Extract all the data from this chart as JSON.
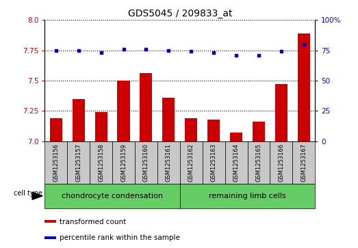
{
  "title": "GDS5045 / 209833_at",
  "samples": [
    "GSM1253156",
    "GSM1253157",
    "GSM1253158",
    "GSM1253159",
    "GSM1253160",
    "GSM1253161",
    "GSM1253162",
    "GSM1253163",
    "GSM1253164",
    "GSM1253165",
    "GSM1253166",
    "GSM1253167"
  ],
  "bar_values": [
    7.19,
    7.35,
    7.24,
    7.5,
    7.56,
    7.36,
    7.19,
    7.18,
    7.07,
    7.16,
    7.47,
    7.89
  ],
  "dot_values": [
    75,
    75,
    73,
    76,
    76,
    75,
    74,
    73,
    71,
    71,
    74,
    80
  ],
  "ylim_left": [
    7.0,
    8.0
  ],
  "ylim_right": [
    0,
    100
  ],
  "yticks_left": [
    7.0,
    7.25,
    7.5,
    7.75,
    8.0
  ],
  "yticks_right": [
    0,
    25,
    50,
    75,
    100
  ],
  "bar_color": "#cc0000",
  "dot_color": "#0000cc",
  "bar_width": 0.55,
  "group_bg_color": "#c8c8c8",
  "groups": [
    {
      "label": "chondrocyte condensation",
      "start": 0,
      "end": 5,
      "color": "#66cc66"
    },
    {
      "label": "remaining limb cells",
      "start": 6,
      "end": 11,
      "color": "#66cc66"
    }
  ],
  "cell_type_label": "cell type",
  "legend_bar_label": "transformed count",
  "legend_dot_label": "percentile rank within the sample",
  "title_fontsize": 10,
  "tick_fontsize": 7.5,
  "sample_fontsize": 6,
  "group_fontsize": 8,
  "legend_fontsize": 7.5
}
